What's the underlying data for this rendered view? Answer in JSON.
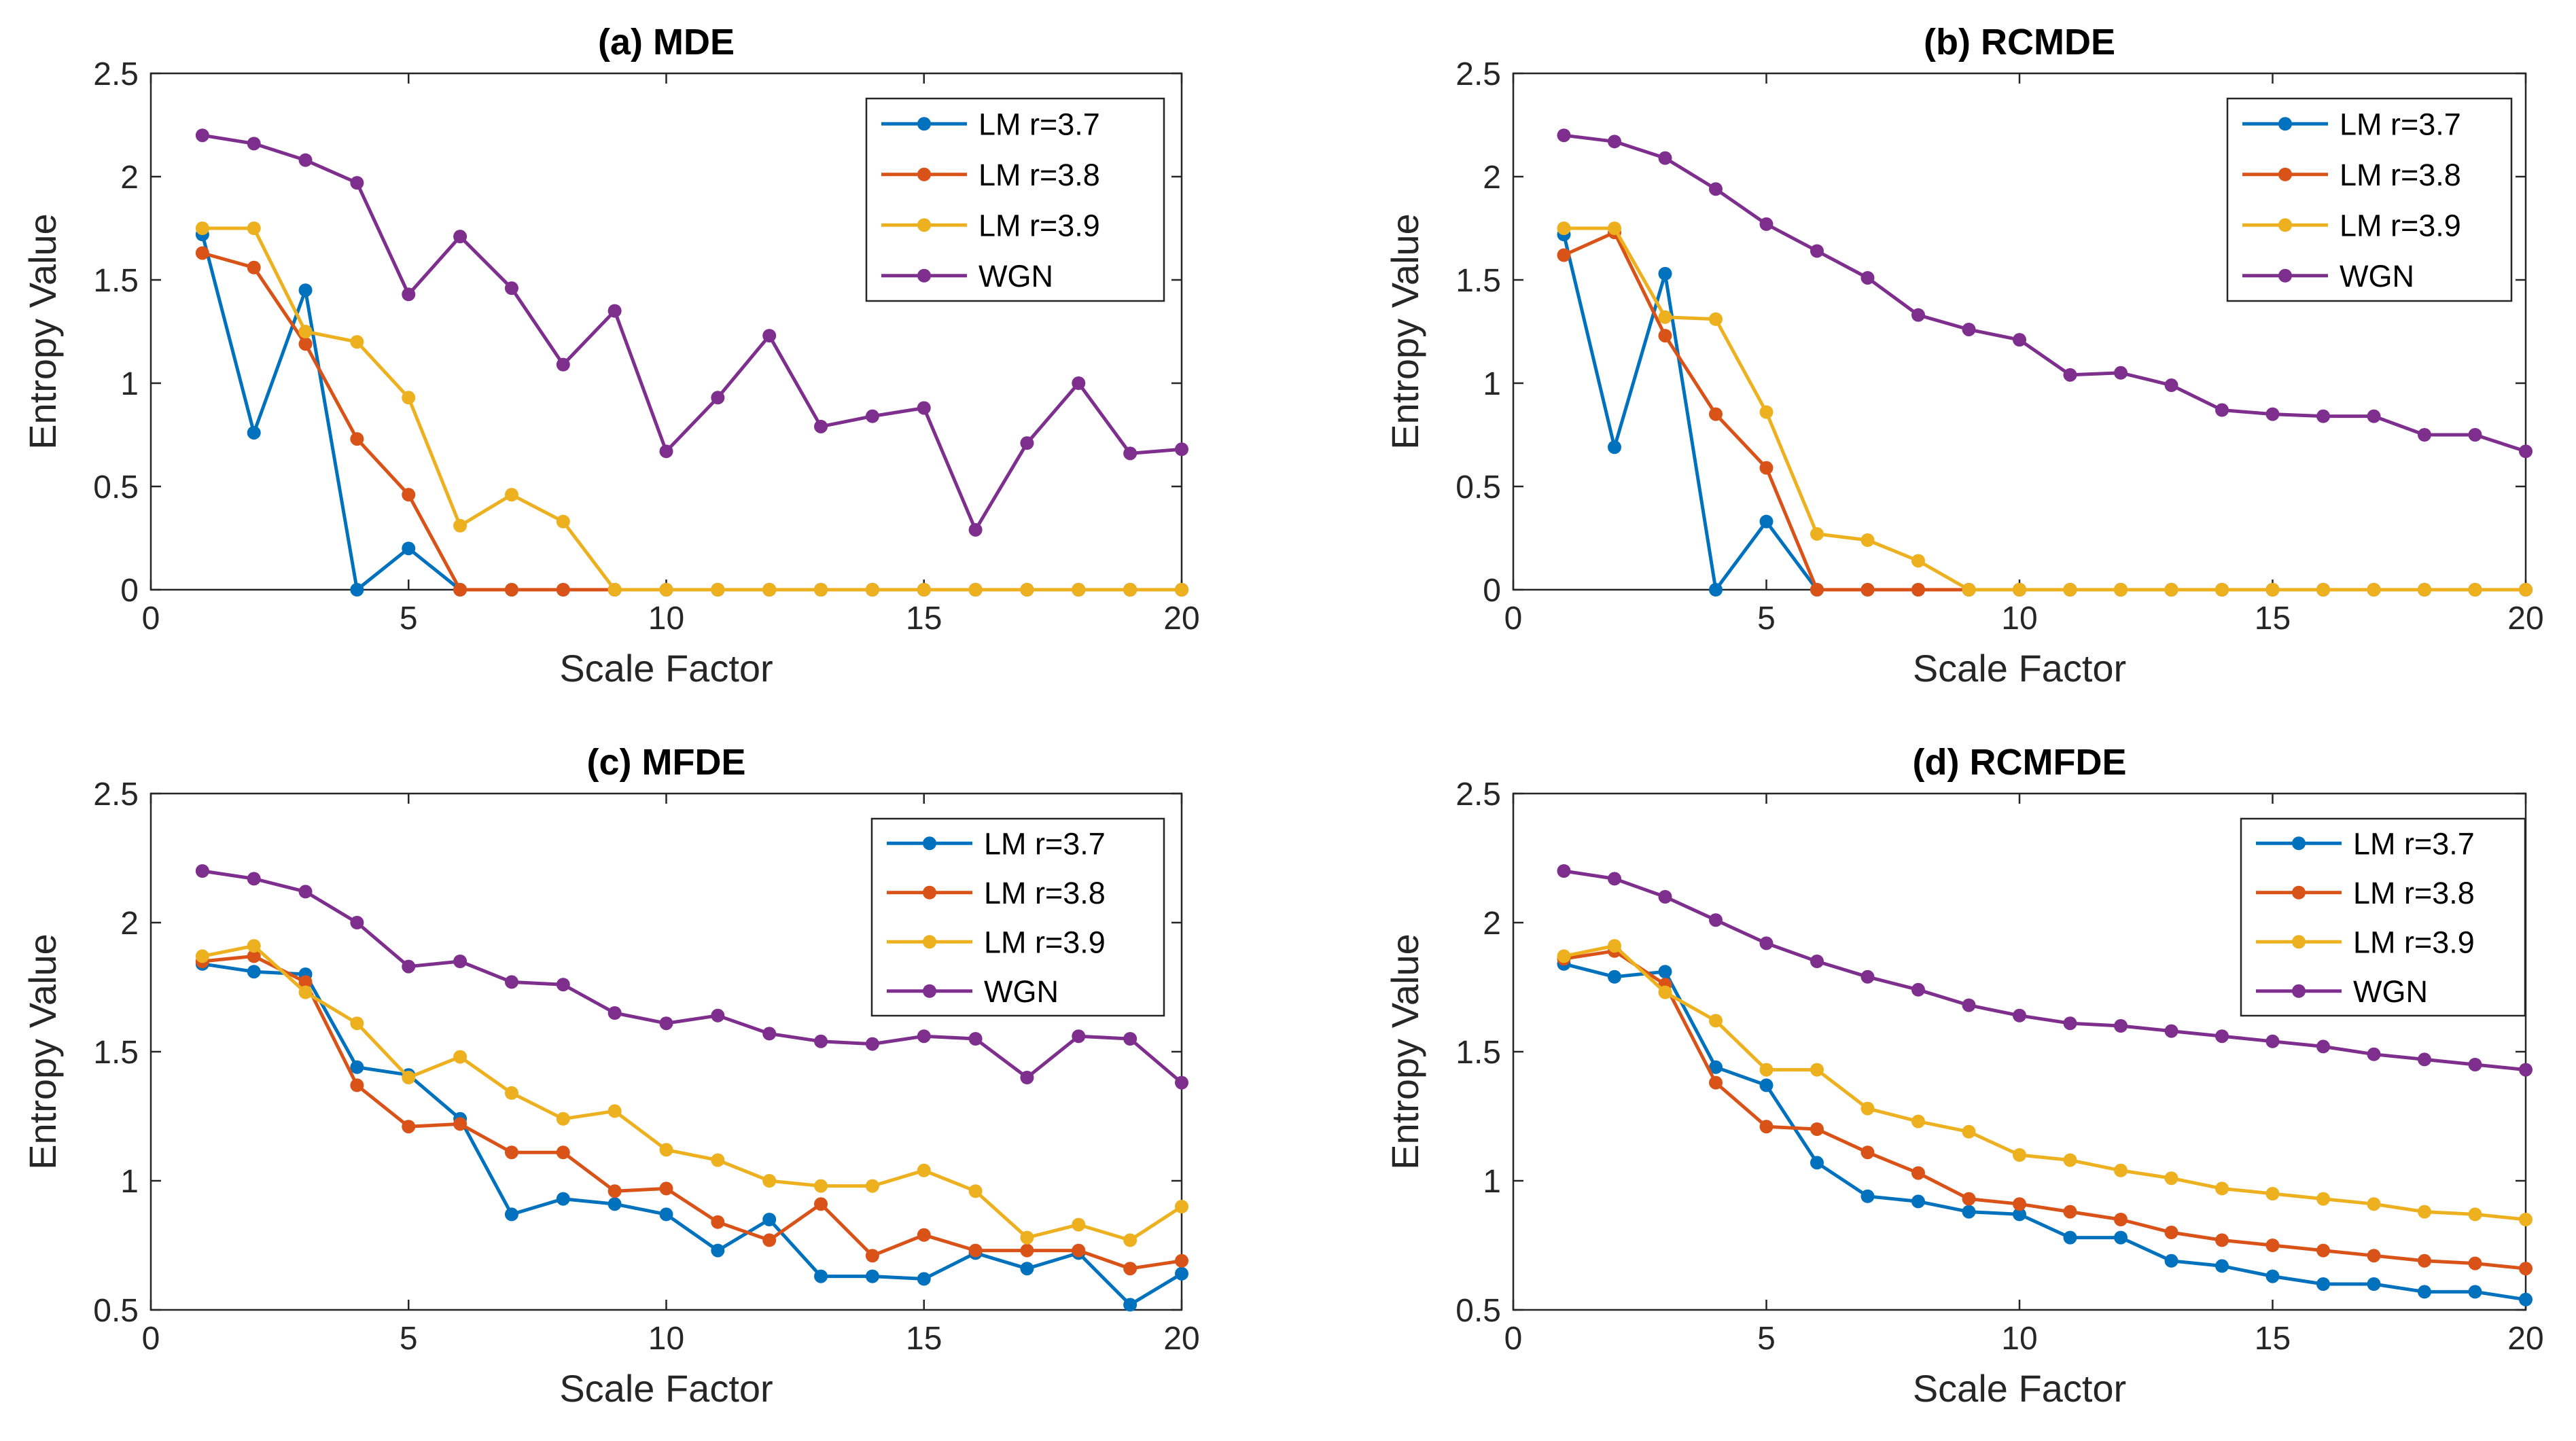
{
  "chart_data": [
    {
      "type": "line",
      "title": "(a) MDE",
      "xlabel": "Scale Factor",
      "ylabel": "Entropy Value",
      "xlim": [
        0,
        20
      ],
      "ylim": [
        0,
        2.5
      ],
      "xticks": [
        0,
        5,
        10,
        15,
        20
      ],
      "yticks": [
        0,
        0.5,
        1,
        1.5,
        2,
        2.5
      ],
      "legend_position": "top-right",
      "x": [
        1,
        2,
        3,
        4,
        5,
        6,
        7,
        8,
        9,
        10,
        11,
        12,
        13,
        14,
        15,
        16,
        17,
        18,
        19,
        20
      ],
      "series": [
        {
          "name": "LM r=3.7",
          "color": "#0072BD",
          "values": [
            1.72,
            0.76,
            1.45,
            0,
            0.2,
            0,
            0,
            0,
            0,
            0,
            0,
            0,
            0,
            0,
            0,
            0,
            0,
            0,
            0,
            0
          ]
        },
        {
          "name": "LM r=3.8",
          "color": "#D95319",
          "values": [
            1.63,
            1.56,
            1.19,
            0.73,
            0.46,
            0,
            0,
            0,
            0,
            0,
            0,
            0,
            0,
            0,
            0,
            0,
            0,
            0,
            0,
            0
          ]
        },
        {
          "name": "LM r=3.9",
          "color": "#EDB120",
          "values": [
            1.75,
            1.75,
            1.25,
            1.2,
            0.93,
            0.31,
            0.46,
            0.33,
            0,
            0,
            0,
            0,
            0,
            0,
            0,
            0,
            0,
            0,
            0,
            0
          ]
        },
        {
          "name": "WGN",
          "color": "#7E2F8E",
          "values": [
            2.2,
            2.16,
            2.08,
            1.97,
            1.43,
            1.71,
            1.46,
            1.09,
            1.35,
            0.67,
            0.93,
            1.23,
            0.79,
            0.84,
            0.88,
            0.29,
            0.71,
            1.0,
            0.66,
            0.68
          ]
        }
      ]
    },
    {
      "type": "line",
      "title": "(b) RCMDE",
      "xlabel": "Scale Factor",
      "ylabel": "Entropy Value",
      "xlim": [
        0,
        20
      ],
      "ylim": [
        0,
        2.5
      ],
      "xticks": [
        0,
        5,
        10,
        15,
        20
      ],
      "yticks": [
        0,
        0.5,
        1,
        1.5,
        2,
        2.5
      ],
      "legend_position": "top-right",
      "x": [
        1,
        2,
        3,
        4,
        5,
        6,
        7,
        8,
        9,
        10,
        11,
        12,
        13,
        14,
        15,
        16,
        17,
        18,
        19,
        20
      ],
      "series": [
        {
          "name": "LM r=3.7",
          "color": "#0072BD",
          "values": [
            1.72,
            0.69,
            1.53,
            0,
            0.33,
            0,
            0,
            0,
            0,
            0,
            0,
            0,
            0,
            0,
            0,
            0,
            0,
            0,
            0,
            0
          ]
        },
        {
          "name": "LM r=3.8",
          "color": "#D95319",
          "values": [
            1.62,
            1.73,
            1.23,
            0.85,
            0.59,
            0,
            0,
            0,
            0,
            0,
            0,
            0,
            0,
            0,
            0,
            0,
            0,
            0,
            0,
            0
          ]
        },
        {
          "name": "LM r=3.9",
          "color": "#EDB120",
          "values": [
            1.75,
            1.75,
            1.32,
            1.31,
            0.86,
            0.27,
            0.24,
            0.14,
            0,
            0,
            0,
            0,
            0,
            0,
            0,
            0,
            0,
            0,
            0,
            0
          ]
        },
        {
          "name": "WGN",
          "color": "#7E2F8E",
          "values": [
            2.2,
            2.17,
            2.09,
            1.94,
            1.77,
            1.64,
            1.51,
            1.33,
            1.26,
            1.21,
            1.04,
            1.05,
            0.99,
            0.87,
            0.85,
            0.84,
            0.84,
            0.75,
            0.75,
            0.67
          ]
        }
      ]
    },
    {
      "type": "line",
      "title": "(c) MFDE",
      "xlabel": "Scale Factor",
      "ylabel": "Entropy Value",
      "xlim": [
        0,
        20
      ],
      "ylim": [
        0.5,
        2.5
      ],
      "xticks": [
        0,
        5,
        10,
        15,
        20
      ],
      "yticks": [
        0.5,
        1,
        1.5,
        2,
        2.5
      ],
      "legend_position": "top-right",
      "x": [
        1,
        2,
        3,
        4,
        5,
        6,
        7,
        8,
        9,
        10,
        11,
        12,
        13,
        14,
        15,
        16,
        17,
        18,
        19,
        20
      ],
      "series": [
        {
          "name": "LM r=3.7",
          "color": "#0072BD",
          "values": [
            1.84,
            1.81,
            1.8,
            1.44,
            1.41,
            1.24,
            0.87,
            0.93,
            0.91,
            0.87,
            0.73,
            0.85,
            0.63,
            0.63,
            0.62,
            0.72,
            0.66,
            0.72,
            0.52,
            0.64
          ]
        },
        {
          "name": "LM r=3.8",
          "color": "#D95319",
          "values": [
            1.85,
            1.87,
            1.77,
            1.37,
            1.21,
            1.22,
            1.11,
            1.11,
            0.96,
            0.97,
            0.84,
            0.77,
            0.91,
            0.71,
            0.79,
            0.73,
            0.73,
            0.73,
            0.66,
            0.69
          ]
        },
        {
          "name": "LM r=3.9",
          "color": "#EDB120",
          "values": [
            1.87,
            1.91,
            1.73,
            1.61,
            1.4,
            1.48,
            1.34,
            1.24,
            1.27,
            1.12,
            1.08,
            1.0,
            0.98,
            0.98,
            1.04,
            0.96,
            0.78,
            0.83,
            0.77,
            0.9
          ]
        },
        {
          "name": "WGN",
          "color": "#7E2F8E",
          "values": [
            2.2,
            2.17,
            2.12,
            2.0,
            1.83,
            1.85,
            1.77,
            1.76,
            1.65,
            1.61,
            1.64,
            1.57,
            1.54,
            1.53,
            1.56,
            1.55,
            1.4,
            1.56,
            1.55,
            1.38
          ]
        }
      ]
    },
    {
      "type": "line",
      "title": "(d) RCMFDE",
      "xlabel": "Scale Factor",
      "ylabel": "Entropy Value",
      "xlim": [
        0,
        20
      ],
      "ylim": [
        0.5,
        2.5
      ],
      "xticks": [
        0,
        5,
        10,
        15,
        20
      ],
      "yticks": [
        0.5,
        1,
        1.5,
        2,
        2.5
      ],
      "legend_position": "top-right",
      "x": [
        1,
        2,
        3,
        4,
        5,
        6,
        7,
        8,
        9,
        10,
        11,
        12,
        13,
        14,
        15,
        16,
        17,
        18,
        19,
        20
      ],
      "series": [
        {
          "name": "LM r=3.7",
          "color": "#0072BD",
          "values": [
            1.84,
            1.79,
            1.81,
            1.44,
            1.37,
            1.07,
            0.94,
            0.92,
            0.88,
            0.87,
            0.78,
            0.78,
            0.69,
            0.67,
            0.63,
            0.6,
            0.6,
            0.57,
            0.57,
            0.54
          ]
        },
        {
          "name": "LM r=3.8",
          "color": "#D95319",
          "values": [
            1.86,
            1.89,
            1.76,
            1.38,
            1.21,
            1.2,
            1.11,
            1.03,
            0.93,
            0.91,
            0.88,
            0.85,
            0.8,
            0.77,
            0.75,
            0.73,
            0.71,
            0.69,
            0.68,
            0.66
          ]
        },
        {
          "name": "LM r=3.9",
          "color": "#EDB120",
          "values": [
            1.87,
            1.91,
            1.73,
            1.62,
            1.43,
            1.43,
            1.28,
            1.23,
            1.19,
            1.1,
            1.08,
            1.04,
            1.01,
            0.97,
            0.95,
            0.93,
            0.91,
            0.88,
            0.87,
            0.85
          ]
        },
        {
          "name": "WGN",
          "color": "#7E2F8E",
          "values": [
            2.2,
            2.17,
            2.1,
            2.01,
            1.92,
            1.85,
            1.79,
            1.74,
            1.68,
            1.64,
            1.61,
            1.6,
            1.58,
            1.56,
            1.54,
            1.52,
            1.49,
            1.47,
            1.45,
            1.43
          ]
        }
      ]
    }
  ]
}
